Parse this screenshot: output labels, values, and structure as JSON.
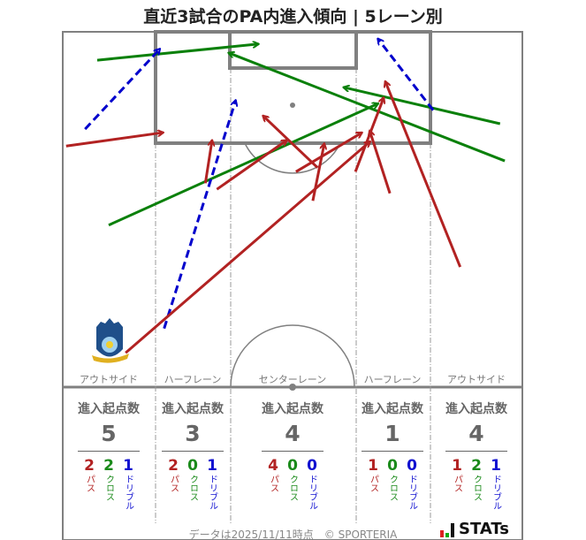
{
  "title": "直近3試合のPA内進入傾向 | 5レーン別",
  "lanes": [
    {
      "name": "アウトサイド",
      "header": "進入起点数",
      "total": "5",
      "pass": "2",
      "cross": "2",
      "dribble": "1"
    },
    {
      "name": "ハーフレーン",
      "header": "進入起点数",
      "total": "3",
      "pass": "2",
      "cross": "0",
      "dribble": "1"
    },
    {
      "name": "センターレーン",
      "header": "進入起点数",
      "total": "4",
      "pass": "4",
      "cross": "0",
      "dribble": "0"
    },
    {
      "name": "ハーフレーン",
      "header": "進入起点数",
      "total": "1",
      "pass": "1",
      "cross": "0",
      "dribble": "0"
    },
    {
      "name": "アウトサイド",
      "header": "進入起点数",
      "total": "4",
      "pass": "1",
      "cross": "2",
      "dribble": "1"
    }
  ],
  "legend": {
    "pass": "パス",
    "cross": "クロス",
    "dribble": "ドリブル"
  },
  "footer": "データは2025/11/11時点　© SPORTERIA",
  "brand": "STATs",
  "colors": {
    "pass": "#b22222",
    "cross": "#0a800a",
    "dribble": "#0000cc",
    "lines": "#808080"
  },
  "chart_data": {
    "type": "scatter",
    "title": "直近3試合のPA内進入傾向 | 5レーン別",
    "units": "pitch meters (x across 0-68 from left touchline, y distance from goal line)",
    "arrows": [
      {
        "type": "cross",
        "from": [
          5.1,
          4.2
        ],
        "to": [
          29.0,
          1.8
        ]
      },
      {
        "type": "cross",
        "from": [
          65.4,
          19.1
        ],
        "to": [
          24.5,
          3.1
        ]
      },
      {
        "type": "cross",
        "from": [
          64.7,
          13.6
        ],
        "to": [
          41.5,
          8.2
        ]
      },
      {
        "type": "cross",
        "from": [
          6.8,
          28.6
        ],
        "to": [
          46.7,
          10.6
        ]
      },
      {
        "type": "dribble",
        "from": [
          3.3,
          14.4
        ],
        "to": [
          14.4,
          2.5
        ]
      },
      {
        "type": "dribble",
        "from": [
          15.0,
          43.9
        ],
        "to": [
          25.6,
          10.1
        ]
      },
      {
        "type": "dribble",
        "from": [
          54.8,
          11.6
        ],
        "to": [
          46.6,
          1.0
        ]
      },
      {
        "type": "pass",
        "from": [
          0.5,
          16.9
        ],
        "to": [
          14.9,
          14.9
        ]
      },
      {
        "type": "pass",
        "from": [
          21.1,
          22.4
        ],
        "to": [
          22.1,
          16.0
        ]
      },
      {
        "type": "pass",
        "from": [
          22.8,
          23.3
        ],
        "to": [
          33.2,
          16.0
        ]
      },
      {
        "type": "pass",
        "from": [
          37.7,
          20.1
        ],
        "to": [
          29.6,
          12.4
        ]
      },
      {
        "type": "pass",
        "from": [
          34.5,
          20.7
        ],
        "to": [
          44.3,
          14.9
        ]
      },
      {
        "type": "pass",
        "from": [
          37.0,
          25.0
        ],
        "to": [
          38.7,
          16.5
        ]
      },
      {
        "type": "pass",
        "from": [
          43.3,
          20.7
        ],
        "to": [
          47.5,
          9.7
        ]
      },
      {
        "type": "pass",
        "from": [
          48.4,
          23.9
        ],
        "to": [
          45.4,
          14.6
        ]
      },
      {
        "type": "pass",
        "from": [
          58.8,
          34.8
        ],
        "to": [
          47.7,
          7.3
        ]
      },
      {
        "type": "pass",
        "from": [
          9.3,
          47.5
        ],
        "to": [
          45.5,
          16.2
        ]
      }
    ]
  }
}
